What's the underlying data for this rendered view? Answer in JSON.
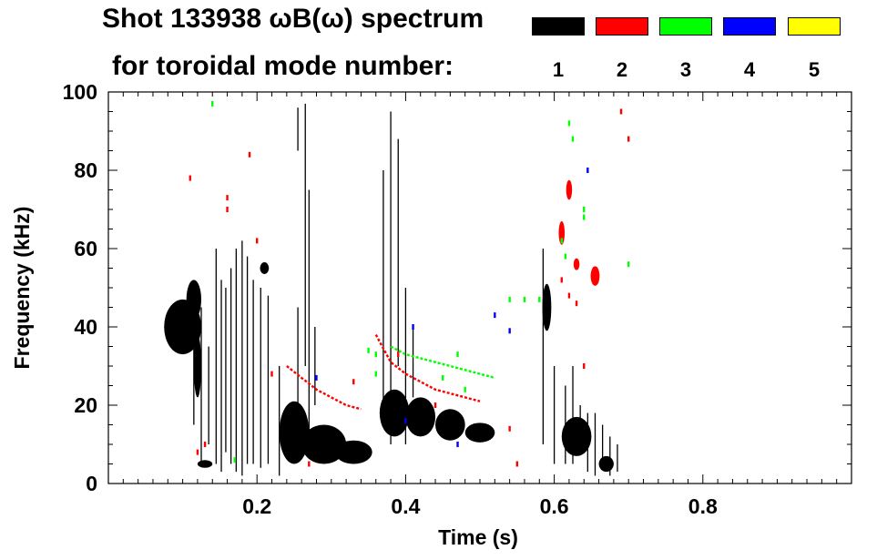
{
  "header": {
    "title_line1": "Shot 133938 ωB(ω) spectrum",
    "title_line2": "for toroidal mode number:"
  },
  "legend": [
    {
      "mode": "1",
      "color": "#000000"
    },
    {
      "mode": "2",
      "color": "#ff0000"
    },
    {
      "mode": "3",
      "color": "#00ff00"
    },
    {
      "mode": "4",
      "color": "#0000ff"
    },
    {
      "mode": "5",
      "color": "#ffff00"
    }
  ],
  "chart_data": {
    "type": "scatter",
    "title": "Shot 133938 ωB(ω) spectrum for toroidal mode number:",
    "xlabel": "Time (s)",
    "ylabel": "Frequency (kHz)",
    "xlim": [
      0.0,
      1.0
    ],
    "ylim": [
      0,
      100
    ],
    "xticks": [
      0.2,
      0.4,
      0.6,
      0.8
    ],
    "xtick_labels": [
      "0.2",
      "0.4",
      "0.6",
      "0.8"
    ],
    "yticks": [
      0,
      20,
      40,
      60,
      80,
      100
    ],
    "ytick_labels": [
      "0",
      "20",
      "40",
      "60",
      "80",
      "100"
    ],
    "series": [
      {
        "name": "1",
        "color": "#000000",
        "blobs": [
          {
            "x": 0.1,
            "y": 40,
            "w": 0.05,
            "h": 14
          },
          {
            "x": 0.115,
            "y": 47,
            "w": 0.02,
            "h": 10
          },
          {
            "x": 0.12,
            "y": 30,
            "w": 0.01,
            "h": 16
          },
          {
            "x": 0.13,
            "y": 5,
            "w": 0.02,
            "h": 2
          },
          {
            "x": 0.25,
            "y": 13,
            "w": 0.04,
            "h": 16
          },
          {
            "x": 0.29,
            "y": 10,
            "w": 0.06,
            "h": 10
          },
          {
            "x": 0.33,
            "y": 8,
            "w": 0.05,
            "h": 6
          },
          {
            "x": 0.385,
            "y": 18,
            "w": 0.04,
            "h": 12
          },
          {
            "x": 0.42,
            "y": 17,
            "w": 0.04,
            "h": 10
          },
          {
            "x": 0.46,
            "y": 15,
            "w": 0.04,
            "h": 8
          },
          {
            "x": 0.5,
            "y": 13,
            "w": 0.04,
            "h": 5
          },
          {
            "x": 0.59,
            "y": 45,
            "w": 0.012,
            "h": 12
          },
          {
            "x": 0.63,
            "y": 12,
            "w": 0.04,
            "h": 10
          },
          {
            "x": 0.67,
            "y": 5,
            "w": 0.02,
            "h": 4
          },
          {
            "x": 0.21,
            "y": 55,
            "w": 0.012,
            "h": 3
          }
        ],
        "streaks": [
          {
            "x": 0.115,
            "y0": 15,
            "y1": 50
          },
          {
            "x": 0.125,
            "y0": 5,
            "y1": 45
          },
          {
            "x": 0.135,
            "y0": 10,
            "y1": 35
          },
          {
            "x": 0.145,
            "y0": 5,
            "y1": 60
          },
          {
            "x": 0.152,
            "y0": 3,
            "y1": 52
          },
          {
            "x": 0.158,
            "y0": 8,
            "y1": 50
          },
          {
            "x": 0.165,
            "y0": 5,
            "y1": 55
          },
          {
            "x": 0.172,
            "y0": 3,
            "y1": 60
          },
          {
            "x": 0.18,
            "y0": 2,
            "y1": 62
          },
          {
            "x": 0.187,
            "y0": 5,
            "y1": 58
          },
          {
            "x": 0.195,
            "y0": 5,
            "y1": 52
          },
          {
            "x": 0.205,
            "y0": 4,
            "y1": 50
          },
          {
            "x": 0.215,
            "y0": 5,
            "y1": 48
          },
          {
            "x": 0.23,
            "y0": 2,
            "y1": 30
          },
          {
            "x": 0.255,
            "y0": 20,
            "y1": 45
          },
          {
            "x": 0.265,
            "y0": 30,
            "y1": 97
          },
          {
            "x": 0.27,
            "y0": 10,
            "y1": 75
          },
          {
            "x": 0.278,
            "y0": 20,
            "y1": 40
          },
          {
            "x": 0.255,
            "y0": 85,
            "y1": 96
          },
          {
            "x": 0.38,
            "y0": 10,
            "y1": 95
          },
          {
            "x": 0.37,
            "y0": 20,
            "y1": 80
          },
          {
            "x": 0.39,
            "y0": 30,
            "y1": 88
          },
          {
            "x": 0.4,
            "y0": 10,
            "y1": 50
          },
          {
            "x": 0.41,
            "y0": 22,
            "y1": 40
          },
          {
            "x": 0.585,
            "y0": 10,
            "y1": 60
          },
          {
            "x": 0.6,
            "y0": 5,
            "y1": 30
          },
          {
            "x": 0.615,
            "y0": 5,
            "y1": 25
          },
          {
            "x": 0.625,
            "y0": 5,
            "y1": 30
          },
          {
            "x": 0.635,
            "y0": 8,
            "y1": 20
          },
          {
            "x": 0.645,
            "y0": 3,
            "y1": 18
          },
          {
            "x": 0.655,
            "y0": 2,
            "y1": 18
          },
          {
            "x": 0.665,
            "y0": 4,
            "y1": 15
          },
          {
            "x": 0.675,
            "y0": 2,
            "y1": 12
          },
          {
            "x": 0.685,
            "y0": 3,
            "y1": 10
          }
        ]
      },
      {
        "name": "2",
        "color": "#ff0000",
        "blobs": [
          {
            "x": 0.655,
            "y": 53,
            "w": 0.012,
            "h": 5
          },
          {
            "x": 0.61,
            "y": 64,
            "w": 0.008,
            "h": 6
          },
          {
            "x": 0.62,
            "y": 75,
            "w": 0.008,
            "h": 5
          },
          {
            "x": 0.63,
            "y": 56,
            "w": 0.008,
            "h": 3
          }
        ],
        "trails": [
          [
            [
              0.24,
              30
            ],
            [
              0.26,
              27
            ],
            [
              0.28,
              24
            ],
            [
              0.3,
              22
            ],
            [
              0.32,
              20
            ],
            [
              0.34,
              19
            ]
          ],
          [
            [
              0.36,
              38
            ],
            [
              0.38,
              31
            ],
            [
              0.4,
              28
            ],
            [
              0.42,
              26
            ],
            [
              0.44,
              24
            ],
            [
              0.46,
              23
            ],
            [
              0.48,
              22
            ],
            [
              0.5,
              21
            ]
          ]
        ],
        "dots": [
          [
            0.11,
            78
          ],
          [
            0.16,
            70
          ],
          [
            0.2,
            62
          ],
          [
            0.22,
            28
          ],
          [
            0.13,
            10
          ],
          [
            0.12,
            8
          ],
          [
            0.27,
            5
          ],
          [
            0.33,
            26
          ],
          [
            0.39,
            33
          ],
          [
            0.44,
            20
          ],
          [
            0.54,
            14
          ],
          [
            0.55,
            5
          ],
          [
            0.61,
            52
          ],
          [
            0.62,
            48
          ],
          [
            0.63,
            46
          ],
          [
            0.64,
            30
          ],
          [
            0.7,
            88
          ],
          [
            0.69,
            95
          ],
          [
            0.19,
            84
          ],
          [
            0.16,
            73
          ]
        ]
      },
      {
        "name": "3",
        "color": "#00ff00",
        "trails": [
          [
            [
              0.38,
              35
            ],
            [
              0.4,
              33
            ],
            [
              0.42,
              32
            ],
            [
              0.44,
              31
            ],
            [
              0.46,
              30
            ],
            [
              0.48,
              29
            ],
            [
              0.5,
              28
            ],
            [
              0.52,
              27
            ]
          ]
        ],
        "dots": [
          [
            0.62,
            92
          ],
          [
            0.625,
            88
          ],
          [
            0.61,
            62
          ],
          [
            0.615,
            58
          ],
          [
            0.64,
            70
          ],
          [
            0.64,
            68
          ],
          [
            0.54,
            47
          ],
          [
            0.56,
            47
          ],
          [
            0.58,
            47
          ],
          [
            0.35,
            34
          ],
          [
            0.36,
            33
          ],
          [
            0.14,
            97
          ],
          [
            0.17,
            6
          ],
          [
            0.47,
            33
          ],
          [
            0.48,
            24
          ],
          [
            0.7,
            56
          ],
          [
            0.36,
            28
          ],
          [
            0.45,
            27
          ]
        ]
      },
      {
        "name": "4",
        "color": "#0000ff",
        "dots": [
          [
            0.52,
            43
          ],
          [
            0.54,
            39
          ],
          [
            0.41,
            40
          ],
          [
            0.47,
            10
          ],
          [
            0.645,
            80
          ],
          [
            0.28,
            27
          ],
          [
            0.4,
            16
          ]
        ]
      },
      {
        "name": "5",
        "color": "#ffff00",
        "dots": []
      }
    ]
  }
}
